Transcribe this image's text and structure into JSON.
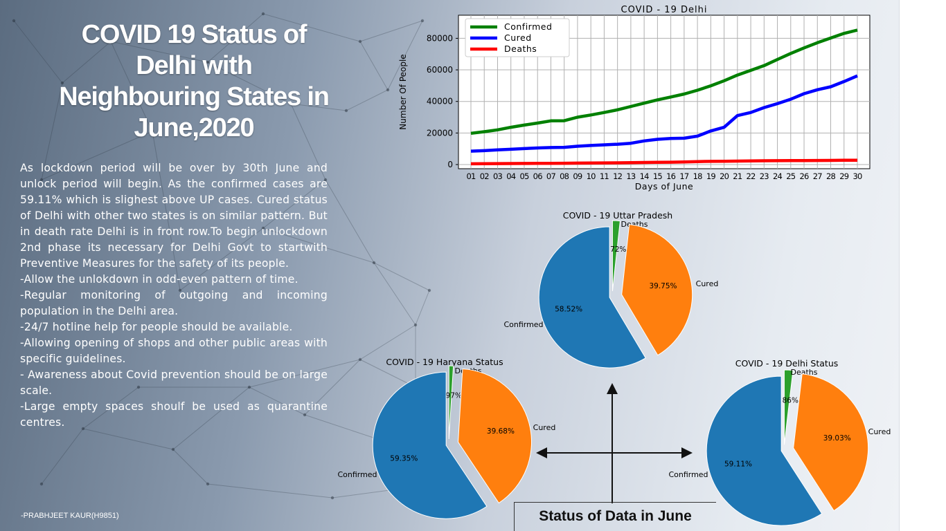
{
  "slide": {
    "title_lines": [
      "COVID 19 Status of",
      "Delhi with",
      "Neighbouring States in",
      "June,2020"
    ],
    "body_paragraphs": [
      "As lockdown period will be over by 30th  June and unlock period will begin. As the confirmed cases are 59.11% which is slighest above UP cases. Cured status of Delhi with other two states is on similar pattern. But in death rate Delhi is in front row.To begin unlockdown 2nd  phase its necessary for Delhi Govt to startwith Preventive Measures for the safety of its people.",
      "-Allow the unlokdown in odd-even pattern of time.",
      "-Regular monitoring of outgoing and incoming population in the Delhi area.",
      "-24/7 hotline help for people should be available.",
      "-Allowing opening of shops and other public areas with specific guidelines.",
      "- Awareness about Covid prevention should be on  large scale.",
      "-Large empty spaces shoulf be used as quarantine centres."
    ],
    "author": "-PRABHJEET KAUR(H9851)",
    "caption": "Status of Data in June"
  },
  "chart_data": [
    {
      "type": "line",
      "title": "COVID - 19 Delhi",
      "xlabel": "Days of June",
      "ylabel": "Number Of People",
      "x": [
        "01",
        "02",
        "03",
        "04",
        "05",
        "06",
        "07",
        "08",
        "09",
        "10",
        "11",
        "12",
        "13",
        "14",
        "15",
        "16",
        "17",
        "18",
        "19",
        "20",
        "21",
        "22",
        "23",
        "24",
        "25",
        "26",
        "27",
        "28",
        "29",
        "30"
      ],
      "ylim": [
        0,
        85000
      ],
      "yticks": [
        0,
        20000,
        40000,
        60000,
        80000
      ],
      "grid": true,
      "legend": "top-left",
      "series": [
        {
          "name": "Confirmed",
          "color": "#008000",
          "values": [
            19800,
            20800,
            22000,
            23600,
            25000,
            26300,
            27700,
            27800,
            30000,
            31400,
            33000,
            34700,
            36800,
            38900,
            41000,
            42800,
            44700,
            47100,
            49900,
            53100,
            56700,
            59700,
            62700,
            66600,
            70400,
            73900,
            77200,
            80200,
            83100,
            85200
          ]
        },
        {
          "name": "Cured",
          "color": "#0000ff",
          "values": [
            8500,
            8800,
            9300,
            9700,
            10100,
            10500,
            10800,
            10900,
            11600,
            12100,
            12500,
            12900,
            13500,
            15000,
            16000,
            16500,
            16700,
            18000,
            21300,
            23600,
            31000,
            33000,
            36100,
            38600,
            41400,
            44900,
            47400,
            49300,
            52600,
            56200
          ]
        },
        {
          "name": "Deaths",
          "color": "#ff0000",
          "values": [
            500,
            550,
            600,
            650,
            700,
            750,
            800,
            850,
            900,
            1000,
            1050,
            1100,
            1200,
            1300,
            1400,
            1500,
            1600,
            1900,
            2000,
            2100,
            2200,
            2300,
            2400,
            2450,
            2500,
            2550,
            2600,
            2650,
            2700,
            2750
          ]
        }
      ]
    },
    {
      "type": "pie",
      "title": "COVID - 19 Uttar Pradesh",
      "labels": [
        "Deaths",
        "Cured",
        "Confirmed"
      ],
      "values": [
        1.72,
        39.75,
        58.52
      ],
      "value_labels": [
        "1.72%",
        "39.75%",
        "58.52%"
      ],
      "colors": [
        "#2ca02c",
        "#ff7f0e",
        "#1f77b4"
      ],
      "exploded": true
    },
    {
      "type": "pie",
      "title": "COVID - 19 Haryana Status",
      "labels": [
        "Deaths",
        "Cured",
        "Confirmed"
      ],
      "values": [
        0.97,
        39.68,
        59.35
      ],
      "value_labels": [
        "0.97%",
        "39.68%",
        "59.35%"
      ],
      "colors": [
        "#2ca02c",
        "#ff7f0e",
        "#1f77b4"
      ],
      "exploded": true
    },
    {
      "type": "pie",
      "title": "COVID - 19 Delhi Status",
      "labels": [
        "Deaths",
        "Cured",
        "Confirmed"
      ],
      "values": [
        1.86,
        39.03,
        59.11
      ],
      "value_labels": [
        "1.86%",
        "39.03%",
        "59.11%"
      ],
      "colors": [
        "#2ca02c",
        "#ff7f0e",
        "#1f77b4"
      ],
      "exploded": true
    }
  ]
}
